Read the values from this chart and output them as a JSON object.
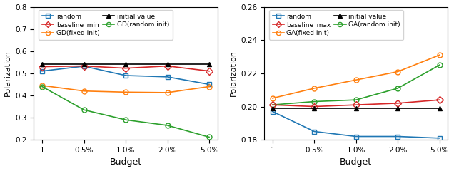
{
  "x_labels": [
    "1",
    "0.5%",
    "1.0%",
    "2.0%",
    "5.0%"
  ],
  "x_positions": [
    0,
    1,
    2,
    3,
    4
  ],
  "left": {
    "ylabel": "Polarization",
    "xlabel": "Budget",
    "ylim": [
      0.2,
      0.8
    ],
    "yticks": [
      0.2,
      0.3,
      0.4,
      0.5,
      0.6,
      0.7,
      0.8
    ],
    "series_order": [
      "random",
      "GD(fixed init)",
      "GD(random init)",
      "baseline_min",
      "initial value"
    ],
    "series": {
      "random": {
        "color": "#1f77b4",
        "marker": "s",
        "marker_fill": "none",
        "values": [
          0.51,
          0.532,
          0.49,
          0.484,
          0.45
        ]
      },
      "GD(fixed init)": {
        "color": "#ff7f0e",
        "marker": "o",
        "marker_fill": "none",
        "values": [
          0.445,
          0.42,
          0.415,
          0.413,
          0.44
        ]
      },
      "GD(random init)": {
        "color": "#2ca02c",
        "marker": "o",
        "marker_fill": "none",
        "values": [
          0.44,
          0.335,
          0.29,
          0.265,
          0.212
        ]
      },
      "baseline_min": {
        "color": "#d62728",
        "marker": "D",
        "marker_fill": "none",
        "values": [
          0.53,
          0.533,
          0.523,
          0.533,
          0.51
        ]
      },
      "initial value": {
        "color": "#000000",
        "marker": "^",
        "marker_fill": "full",
        "values": [
          0.54,
          0.54,
          0.54,
          0.54,
          0.54
        ]
      }
    },
    "legend_col1": [
      "random",
      "GD(fixed init)",
      "GD(random init)"
    ],
    "legend_col2": [
      "baseline_min",
      "initial value"
    ]
  },
  "right": {
    "ylabel": "Polarization",
    "xlabel": "Budget",
    "ylim": [
      0.18,
      0.26
    ],
    "yticks": [
      0.18,
      0.2,
      0.22,
      0.24,
      0.26
    ],
    "series_order": [
      "random",
      "GA(fixed init)",
      "GA(random init)",
      "baseline_max",
      "initial value"
    ],
    "series": {
      "random": {
        "color": "#1f77b4",
        "marker": "s",
        "marker_fill": "none",
        "values": [
          0.197,
          0.185,
          0.182,
          0.182,
          0.181
        ]
      },
      "GA(fixed init)": {
        "color": "#ff7f0e",
        "marker": "o",
        "marker_fill": "none",
        "values": [
          0.205,
          0.211,
          0.216,
          0.221,
          0.231
        ]
      },
      "GA(random init)": {
        "color": "#2ca02c",
        "marker": "o",
        "marker_fill": "none",
        "values": [
          0.201,
          0.203,
          0.204,
          0.211,
          0.225
        ]
      },
      "baseline_max": {
        "color": "#d62728",
        "marker": "D",
        "marker_fill": "none",
        "values": [
          0.201,
          0.2,
          0.201,
          0.202,
          0.204
        ]
      },
      "initial value": {
        "color": "#000000",
        "marker": "^",
        "marker_fill": "full",
        "values": [
          0.199,
          0.199,
          0.199,
          0.199,
          0.199
        ]
      }
    },
    "legend_col1": [
      "random",
      "GA(fixed init)",
      "GA(random init)"
    ],
    "legend_col2": [
      "baseline_max",
      "initial value"
    ]
  }
}
